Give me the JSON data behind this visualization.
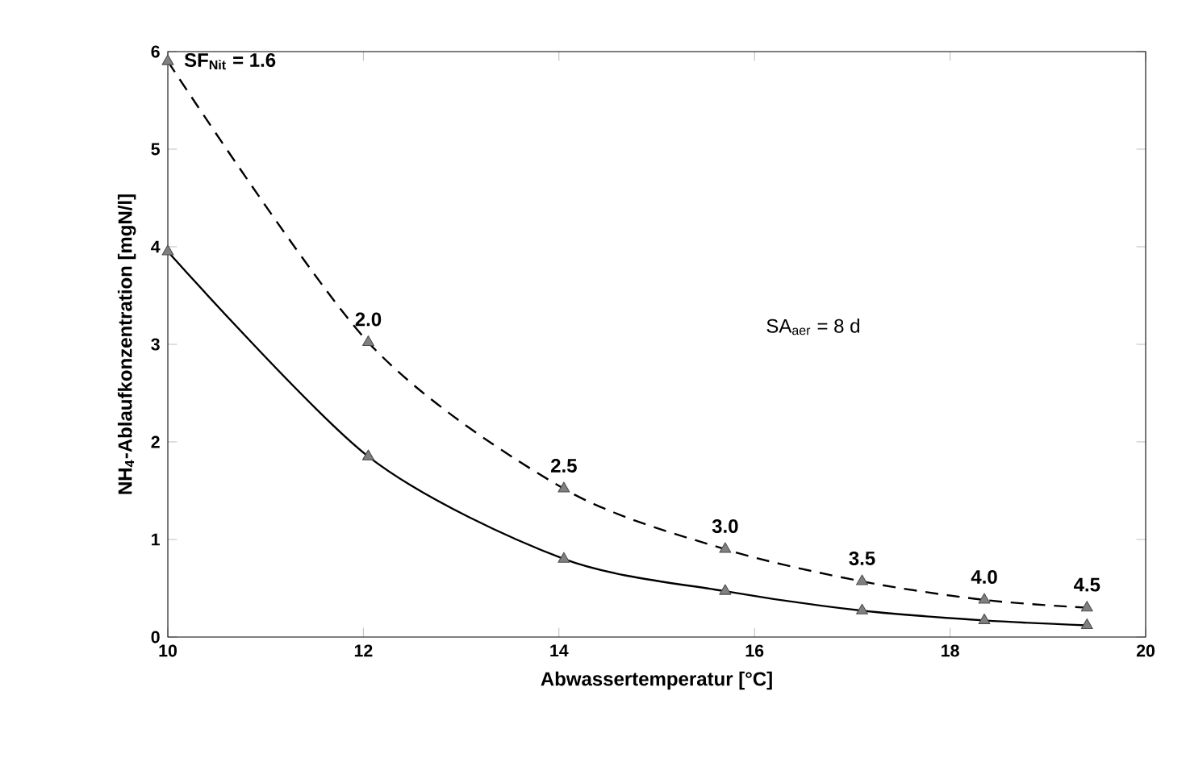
{
  "chart_data": {
    "type": "line",
    "xlabel": "Abwassertemperatur [°C]",
    "ylabel": "NH$_{4}$-Ablaufkonzentration [mgN/l]",
    "series": [
      {
        "color": "#000000",
        "line_style": "dashed",
        "x": [
          10,
          12.05,
          14.05,
          15.7,
          17.1,
          18.35,
          19.4
        ],
        "values": [
          5.9,
          3.02,
          1.52,
          0.9,
          0.57,
          0.38,
          0.3
        ]
      },
      {
        "color": "#000000",
        "line_style": "solid",
        "x": [
          10,
          12.05,
          14.05,
          15.7,
          17.1,
          18.35,
          19.4
        ],
        "values": [
          3.95,
          1.85,
          0.8,
          0.47,
          0.27,
          0.17,
          0.12
        ]
      }
    ],
    "marker": "triangle",
    "xlim": [
      10,
      20
    ],
    "xticks": [
      10,
      12,
      14,
      16,
      18,
      20
    ],
    "ylim": [
      0,
      6
    ],
    "yticks": [
      0,
      1,
      2,
      3,
      4,
      5,
      6
    ],
    "grid": false,
    "annotations": [
      {
        "text": "SF$_{Nit}$ = 1.6",
        "x": 10,
        "y": 5.9
      },
      {
        "text": "2.0",
        "x": 12.05,
        "y": 3.02
      },
      {
        "text": "2.5",
        "x": 14.05,
        "y": 1.52
      },
      {
        "text": "3.0",
        "x": 15.7,
        "y": 0.9
      },
      {
        "text": "3.5",
        "x": 17.1,
        "y": 0.57
      },
      {
        "text": "4.0",
        "x": 18.35,
        "y": 0.38
      },
      {
        "text": "4.5",
        "x": 19.4,
        "y": 0.3
      },
      "SA$_{aer}$ = 8 d"
    ]
  }
}
